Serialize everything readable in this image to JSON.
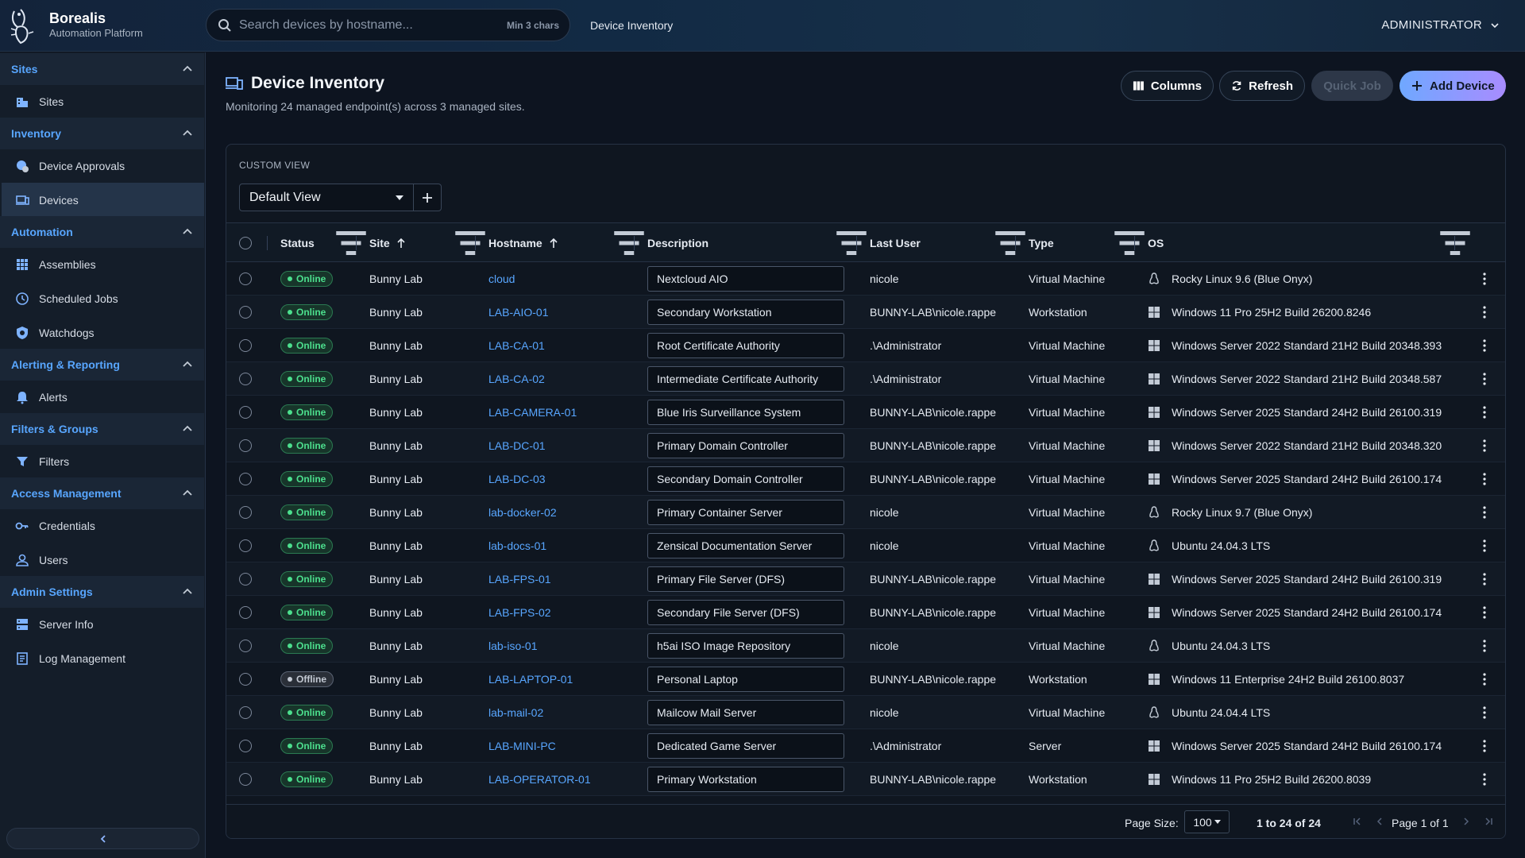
{
  "brand": {
    "name": "Borealis",
    "subtitle": "Automation Platform"
  },
  "search": {
    "placeholder": "Search devices by hostname...",
    "hint": "Min 3 chars"
  },
  "breadcrumb": "Device Inventory",
  "user": {
    "name": "ADMINISTRATOR"
  },
  "sidebar": {
    "sections": [
      {
        "title": "Sites",
        "items": [
          {
            "label": "Sites",
            "icon": "building-icon"
          }
        ]
      },
      {
        "title": "Inventory",
        "items": [
          {
            "label": "Device Approvals",
            "icon": "approval-icon"
          },
          {
            "label": "Devices",
            "icon": "devices-icon",
            "active": true
          }
        ]
      },
      {
        "title": "Automation",
        "items": [
          {
            "label": "Assemblies",
            "icon": "grid-icon"
          },
          {
            "label": "Scheduled Jobs",
            "icon": "clock-icon"
          },
          {
            "label": "Watchdogs",
            "icon": "watchdog-icon"
          }
        ]
      },
      {
        "title": "Alerting & Reporting",
        "items": [
          {
            "label": "Alerts",
            "icon": "bell-icon"
          }
        ]
      },
      {
        "title": "Filters & Groups",
        "items": [
          {
            "label": "Filters",
            "icon": "filter-icon"
          }
        ]
      },
      {
        "title": "Access Management",
        "items": [
          {
            "label": "Credentials",
            "icon": "key-icon"
          },
          {
            "label": "Users",
            "icon": "user-icon"
          }
        ]
      },
      {
        "title": "Admin Settings",
        "items": [
          {
            "label": "Server Info",
            "icon": "server-icon"
          },
          {
            "label": "Log Management",
            "icon": "log-icon"
          }
        ]
      }
    ]
  },
  "page": {
    "title": "Device Inventory",
    "subtitle": "Monitoring 24 managed endpoint(s) across 3 managed sites."
  },
  "toolbar": {
    "columns": "Columns",
    "refresh": "Refresh",
    "quick_job": "Quick Job",
    "add_device": "Add Device"
  },
  "custom_view": {
    "label": "CUSTOM VIEW",
    "selected": "Default View"
  },
  "table": {
    "headers": {
      "status": "Status",
      "site": "Site",
      "hostname": "Hostname",
      "description": "Description",
      "last_user": "Last User",
      "type": "Type",
      "os": "OS"
    },
    "rows": [
      {
        "status": "Online",
        "site": "Bunny Lab",
        "hostname": "cloud",
        "description": "Nextcloud AIO",
        "last_user": "nicole",
        "type": "Virtual Machine",
        "os_family": "linux",
        "os": "Rocky Linux 9.6 (Blue Onyx)"
      },
      {
        "status": "Online",
        "site": "Bunny Lab",
        "hostname": "LAB-AIO-01",
        "description": "Secondary Workstation",
        "last_user": "BUNNY-LAB\\nicole.rappe",
        "type": "Workstation",
        "os_family": "windows",
        "os": "Windows 11 Pro 25H2 Build 26200.8246"
      },
      {
        "status": "Online",
        "site": "Bunny Lab",
        "hostname": "LAB-CA-01",
        "description": "Root Certificate Authority",
        "last_user": ".\\Administrator",
        "type": "Virtual Machine",
        "os_family": "windows",
        "os": "Windows Server 2022 Standard 21H2 Build 20348.393"
      },
      {
        "status": "Online",
        "site": "Bunny Lab",
        "hostname": "LAB-CA-02",
        "description": "Intermediate Certificate Authority",
        "last_user": ".\\Administrator",
        "type": "Virtual Machine",
        "os_family": "windows",
        "os": "Windows Server 2022 Standard 21H2 Build 20348.587"
      },
      {
        "status": "Online",
        "site": "Bunny Lab",
        "hostname": "LAB-CAMERA-01",
        "description": "Blue Iris Surveillance System",
        "last_user": "BUNNY-LAB\\nicole.rappe",
        "type": "Virtual Machine",
        "os_family": "windows",
        "os": "Windows Server 2025 Standard 24H2 Build 26100.319"
      },
      {
        "status": "Online",
        "site": "Bunny Lab",
        "hostname": "LAB-DC-01",
        "description": "Primary Domain Controller",
        "last_user": "BUNNY-LAB\\nicole.rappe",
        "type": "Virtual Machine",
        "os_family": "windows",
        "os": "Windows Server 2022 Standard 21H2 Build 20348.320"
      },
      {
        "status": "Online",
        "site": "Bunny Lab",
        "hostname": "LAB-DC-03",
        "description": "Secondary Domain Controller",
        "last_user": "BUNNY-LAB\\nicole.rappe",
        "type": "Virtual Machine",
        "os_family": "windows",
        "os": "Windows Server 2025 Standard 24H2 Build 26100.174"
      },
      {
        "status": "Online",
        "site": "Bunny Lab",
        "hostname": "lab-docker-02",
        "description": "Primary Container Server",
        "last_user": "nicole",
        "type": "Virtual Machine",
        "os_family": "linux",
        "os": "Rocky Linux 9.7 (Blue Onyx)"
      },
      {
        "status": "Online",
        "site": "Bunny Lab",
        "hostname": "lab-docs-01",
        "description": "Zensical Documentation Server",
        "last_user": "nicole",
        "type": "Virtual Machine",
        "os_family": "linux",
        "os": "Ubuntu 24.04.3 LTS"
      },
      {
        "status": "Online",
        "site": "Bunny Lab",
        "hostname": "LAB-FPS-01",
        "description": "Primary File Server (DFS)",
        "last_user": "BUNNY-LAB\\nicole.rappe",
        "type": "Virtual Machine",
        "os_family": "windows",
        "os": "Windows Server 2025 Standard 24H2 Build 26100.319"
      },
      {
        "status": "Online",
        "site": "Bunny Lab",
        "hostname": "LAB-FPS-02",
        "description": "Secondary File Server (DFS)",
        "last_user": "BUNNY-LAB\\nicole.rappe",
        "type": "Virtual Machine",
        "os_family": "windows",
        "os": "Windows Server 2025 Standard 24H2 Build 26100.174"
      },
      {
        "status": "Online",
        "site": "Bunny Lab",
        "hostname": "lab-iso-01",
        "description": "h5ai ISO Image Repository",
        "last_user": "nicole",
        "type": "Virtual Machine",
        "os_family": "linux",
        "os": "Ubuntu 24.04.3 LTS"
      },
      {
        "status": "Offline",
        "site": "Bunny Lab",
        "hostname": "LAB-LAPTOP-01",
        "description": "Personal Laptop",
        "last_user": "BUNNY-LAB\\nicole.rappe",
        "type": "Workstation",
        "os_family": "windows",
        "os": "Windows 11 Enterprise 24H2 Build 26100.8037"
      },
      {
        "status": "Online",
        "site": "Bunny Lab",
        "hostname": "lab-mail-02",
        "description": "Mailcow Mail Server",
        "last_user": "nicole",
        "type": "Virtual Machine",
        "os_family": "linux",
        "os": "Ubuntu 24.04.4 LTS"
      },
      {
        "status": "Online",
        "site": "Bunny Lab",
        "hostname": "LAB-MINI-PC",
        "description": "Dedicated Game Server",
        "last_user": ".\\Administrator",
        "type": "Server",
        "os_family": "windows",
        "os": "Windows Server 2025 Standard 24H2 Build 26100.174"
      },
      {
        "status": "Online",
        "site": "Bunny Lab",
        "hostname": "LAB-OPERATOR-01",
        "description": "Primary Workstation",
        "last_user": "BUNNY-LAB\\nicole.rappe",
        "type": "Workstation",
        "os_family": "windows",
        "os": "Windows 11 Pro 25H2 Build 26200.8039"
      }
    ]
  },
  "pagination": {
    "page_size_label": "Page Size:",
    "page_size": "100",
    "range": "1 to 24 of 24",
    "page": "Page 1 of 1"
  },
  "colors": {
    "accent": "#58a6ff",
    "online": "#4ce08e",
    "add_gradient_start": "#6fa8ff",
    "add_gradient_end": "#a88cff"
  }
}
